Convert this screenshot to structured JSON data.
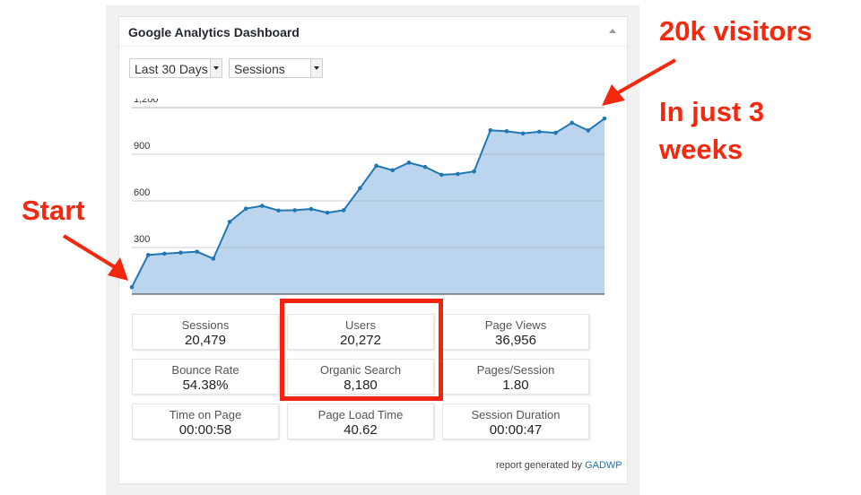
{
  "widget": {
    "title": "Google Analytics Dashboard",
    "period_select": "Last 30 Days",
    "metric_select": "Sessions",
    "footer_text": "report generated by",
    "footer_link": "GADWP"
  },
  "chart_data": {
    "type": "area",
    "title": "",
    "xlabel": "",
    "ylabel": "",
    "yticks": [
      "300",
      "600",
      "900",
      "1,200"
    ],
    "ylim": [
      0,
      1200
    ],
    "grid": true,
    "series": [
      {
        "name": "Sessions",
        "color": "#1f77b4",
        "fill": "#bcd5ee",
        "values": [
          45,
          252,
          260,
          267,
          273,
          228,
          465,
          550,
          568,
          538,
          540,
          548,
          524,
          540,
          682,
          826,
          797,
          846,
          818,
          768,
          773,
          790,
          1054,
          1048,
          1034,
          1045,
          1038,
          1102,
          1053,
          1130
        ]
      }
    ]
  },
  "metrics": [
    {
      "label": "Sessions",
      "value": "20,479"
    },
    {
      "label": "Users",
      "value": "20,272"
    },
    {
      "label": "Page Views",
      "value": "36,956"
    },
    {
      "label": "Bounce Rate",
      "value": "54.38%"
    },
    {
      "label": "Organic Search",
      "value": "8,180"
    },
    {
      "label": "Pages/Session",
      "value": "1.80"
    },
    {
      "label": "Time on Page",
      "value": "00:00:58"
    },
    {
      "label": "Page Load Time",
      "value": "40.62"
    },
    {
      "label": "Session Duration",
      "value": "00:00:47"
    }
  ],
  "annotations": {
    "visitors": "20k visitors",
    "in_just_line1": "In just 3",
    "in_just_line2": "weeks",
    "start": "Start",
    "color": "#f2280f"
  }
}
